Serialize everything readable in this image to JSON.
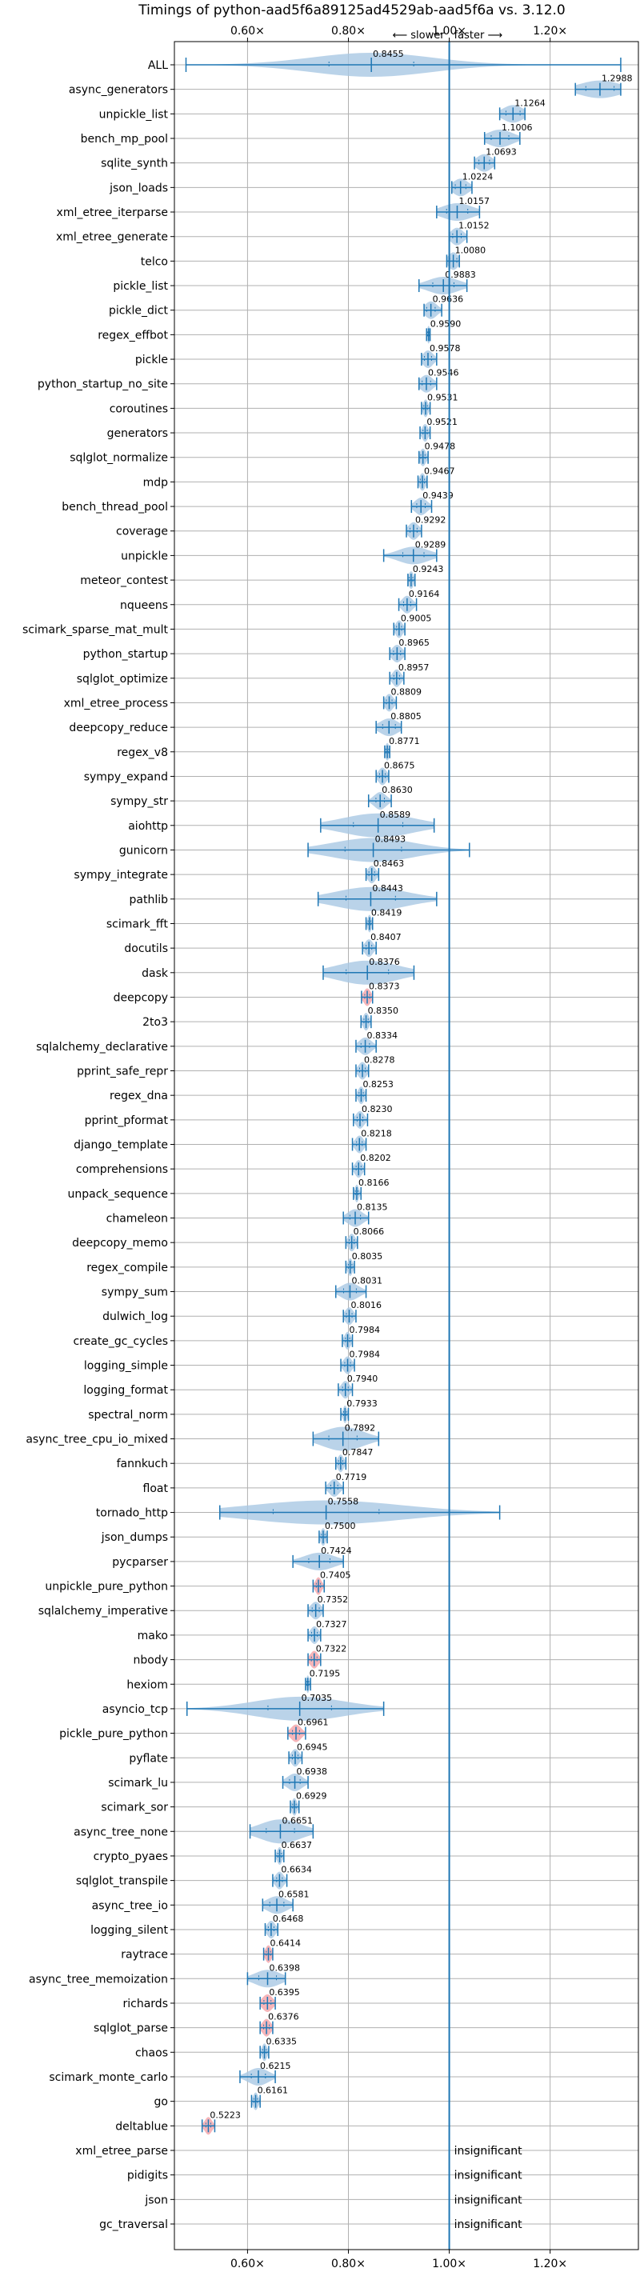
{
  "chart_data": {
    "type": "violin",
    "title": "Timings of python-aad5f6a89125ad4529ab-aad5f6a vs. 3.12.0",
    "direction_labels": {
      "slower": "⟵ slower",
      "faster": "faster ⟶"
    },
    "xlim": [
      0.455,
      1.375
    ],
    "xticks": [
      0.6,
      0.8,
      1.0,
      1.2
    ],
    "xtick_labels": [
      "0.60×",
      "0.80×",
      "1.00×",
      "1.20×"
    ],
    "reference_line": 1.0,
    "grid": true,
    "colors": {
      "violin": "#a9c8e4",
      "line": "#1f77b4",
      "regression": "#f4a3a8"
    },
    "insignificant_label": "insignificant",
    "benchmarks": [
      {
        "name": "ALL",
        "mean": 0.8455,
        "label": "0.8455",
        "min": 0.478,
        "max": 1.34,
        "spread": 0.12,
        "width": "wide"
      },
      {
        "name": "async_generators",
        "mean": 1.2988,
        "label": "1.2988",
        "min": 1.25,
        "max": 1.34,
        "spread": 0.04
      },
      {
        "name": "unpickle_list",
        "mean": 1.1264,
        "label": "1.1264",
        "min": 1.1,
        "max": 1.15,
        "spread": 0.02
      },
      {
        "name": "bench_mp_pool",
        "mean": 1.1006,
        "label": "1.1006",
        "min": 1.07,
        "max": 1.14,
        "spread": 0.025
      },
      {
        "name": "sqlite_synth",
        "mean": 1.0693,
        "label": "1.0693",
        "min": 1.05,
        "max": 1.09,
        "spread": 0.015
      },
      {
        "name": "json_loads",
        "mean": 1.0224,
        "label": "1.0224",
        "min": 1.005,
        "max": 1.045,
        "spread": 0.015
      },
      {
        "name": "xml_etree_iterparse",
        "mean": 1.0157,
        "label": "1.0157",
        "min": 0.975,
        "max": 1.06,
        "spread": 0.03
      },
      {
        "name": "xml_etree_generate",
        "mean": 1.0152,
        "label": "1.0152",
        "min": 1.0,
        "max": 1.035,
        "spread": 0.012
      },
      {
        "name": "telco",
        "mean": 1.008,
        "label": "1.0080",
        "min": 0.995,
        "max": 1.02,
        "spread": 0.01
      },
      {
        "name": "pickle_list",
        "mean": 0.9883,
        "label": "0.9883",
        "min": 0.94,
        "max": 1.035,
        "spread": 0.03
      },
      {
        "name": "pickle_dict",
        "mean": 0.9636,
        "label": "0.9636",
        "min": 0.95,
        "max": 0.985,
        "spread": 0.012
      },
      {
        "name": "regex_effbot",
        "mean": 0.959,
        "label": "0.9590",
        "min": 0.955,
        "max": 0.962,
        "spread": 0.003
      },
      {
        "name": "pickle",
        "mean": 0.9578,
        "label": "0.9578",
        "min": 0.945,
        "max": 0.975,
        "spread": 0.01
      },
      {
        "name": "python_startup_no_site",
        "mean": 0.9546,
        "label": "0.9546",
        "min": 0.94,
        "max": 0.975,
        "spread": 0.012
      },
      {
        "name": "coroutines",
        "mean": 0.9531,
        "label": "0.9531",
        "min": 0.945,
        "max": 0.962,
        "spread": 0.005
      },
      {
        "name": "generators",
        "mean": 0.9521,
        "label": "0.9521",
        "min": 0.942,
        "max": 0.962,
        "spread": 0.006
      },
      {
        "name": "sqlglot_normalize",
        "mean": 0.9478,
        "label": "0.9478",
        "min": 0.94,
        "max": 0.958,
        "spread": 0.006
      },
      {
        "name": "mdp",
        "mean": 0.9467,
        "label": "0.9467",
        "min": 0.938,
        "max": 0.956,
        "spread": 0.006
      },
      {
        "name": "bench_thread_pool",
        "mean": 0.9439,
        "label": "0.9439",
        "min": 0.925,
        "max": 0.965,
        "spread": 0.012
      },
      {
        "name": "coverage",
        "mean": 0.9292,
        "label": "0.9292",
        "min": 0.915,
        "max": 0.945,
        "spread": 0.01
      },
      {
        "name": "unpickle",
        "mean": 0.9289,
        "label": "0.9289",
        "min": 0.87,
        "max": 0.975,
        "spread": 0.03
      },
      {
        "name": "meteor_contest",
        "mean": 0.9243,
        "label": "0.9243",
        "min": 0.918,
        "max": 0.932,
        "spread": 0.005
      },
      {
        "name": "nqueens",
        "mean": 0.9164,
        "label": "0.9164",
        "min": 0.9,
        "max": 0.935,
        "spread": 0.01
      },
      {
        "name": "scimark_sparse_mat_mult",
        "mean": 0.9005,
        "label": "0.9005",
        "min": 0.89,
        "max": 0.912,
        "spread": 0.007
      },
      {
        "name": "python_startup",
        "mean": 0.8965,
        "label": "0.8965",
        "min": 0.882,
        "max": 0.912,
        "spread": 0.01
      },
      {
        "name": "sqlglot_optimize",
        "mean": 0.8957,
        "label": "0.8957",
        "min": 0.882,
        "max": 0.91,
        "spread": 0.008
      },
      {
        "name": "xml_etree_process",
        "mean": 0.8809,
        "label": "0.8809",
        "min": 0.87,
        "max": 0.895,
        "spread": 0.008
      },
      {
        "name": "deepcopy_reduce",
        "mean": 0.8805,
        "label": "0.8805",
        "min": 0.855,
        "max": 0.905,
        "spread": 0.018
      },
      {
        "name": "regex_v8",
        "mean": 0.8771,
        "label": "0.8771",
        "min": 0.872,
        "max": 0.882,
        "spread": 0.004
      },
      {
        "name": "sympy_expand",
        "mean": 0.8675,
        "label": "0.8675",
        "min": 0.855,
        "max": 0.88,
        "spread": 0.008
      },
      {
        "name": "sympy_str",
        "mean": 0.863,
        "label": "0.8630",
        "min": 0.84,
        "max": 0.885,
        "spread": 0.012
      },
      {
        "name": "aiohttp",
        "mean": 0.8589,
        "label": "0.8589",
        "min": 0.745,
        "max": 0.97,
        "spread": 0.07,
        "width": "wide"
      },
      {
        "name": "gunicorn",
        "mean": 0.8493,
        "label": "0.8493",
        "min": 0.72,
        "max": 1.04,
        "spread": 0.08,
        "width": "wide"
      },
      {
        "name": "sympy_integrate",
        "mean": 0.8463,
        "label": "0.8463",
        "min": 0.835,
        "max": 0.86,
        "spread": 0.008
      },
      {
        "name": "pathlib",
        "mean": 0.8443,
        "label": "0.8443",
        "min": 0.74,
        "max": 0.975,
        "spread": 0.07,
        "width": "wide"
      },
      {
        "name": "scimark_fft",
        "mean": 0.8419,
        "label": "0.8419",
        "min": 0.835,
        "max": 0.848,
        "spread": 0.004
      },
      {
        "name": "docutils",
        "mean": 0.8407,
        "label": "0.8407",
        "min": 0.828,
        "max": 0.855,
        "spread": 0.008
      },
      {
        "name": "dask",
        "mean": 0.8376,
        "label": "0.8376",
        "min": 0.75,
        "max": 0.93,
        "spread": 0.06,
        "width": "wide"
      },
      {
        "name": "deepcopy",
        "mean": 0.8373,
        "label": "0.8373",
        "min": 0.826,
        "max": 0.848,
        "spread": 0.007,
        "regression": true
      },
      {
        "name": "2to3",
        "mean": 0.835,
        "label": "0.8350",
        "min": 0.825,
        "max": 0.845,
        "spread": 0.006
      },
      {
        "name": "sqlalchemy_declarative",
        "mean": 0.8334,
        "label": "0.8334",
        "min": 0.815,
        "max": 0.855,
        "spread": 0.012
      },
      {
        "name": "pprint_safe_repr",
        "mean": 0.8278,
        "label": "0.8278",
        "min": 0.815,
        "max": 0.84,
        "spread": 0.008
      },
      {
        "name": "regex_dna",
        "mean": 0.8253,
        "label": "0.8253",
        "min": 0.815,
        "max": 0.835,
        "spread": 0.006
      },
      {
        "name": "pprint_pformat",
        "mean": 0.823,
        "label": "0.8230",
        "min": 0.81,
        "max": 0.838,
        "spread": 0.008
      },
      {
        "name": "django_template",
        "mean": 0.8218,
        "label": "0.8218",
        "min": 0.808,
        "max": 0.835,
        "spread": 0.008
      },
      {
        "name": "comprehensions",
        "mean": 0.8202,
        "label": "0.8202",
        "min": 0.808,
        "max": 0.832,
        "spread": 0.007
      },
      {
        "name": "unpack_sequence",
        "mean": 0.8166,
        "label": "0.8166",
        "min": 0.81,
        "max": 0.825,
        "spread": 0.004
      },
      {
        "name": "chameleon",
        "mean": 0.8135,
        "label": "0.8135",
        "min": 0.79,
        "max": 0.84,
        "spread": 0.015
      },
      {
        "name": "deepcopy_memo",
        "mean": 0.8066,
        "label": "0.8066",
        "min": 0.795,
        "max": 0.818,
        "spread": 0.007
      },
      {
        "name": "regex_compile",
        "mean": 0.8035,
        "label": "0.8035",
        "min": 0.795,
        "max": 0.812,
        "spread": 0.005
      },
      {
        "name": "sympy_sum",
        "mean": 0.8031,
        "label": "0.8031",
        "min": 0.775,
        "max": 0.835,
        "spread": 0.018
      },
      {
        "name": "dulwich_log",
        "mean": 0.8016,
        "label": "0.8016",
        "min": 0.79,
        "max": 0.815,
        "spread": 0.008
      },
      {
        "name": "create_gc_cycles",
        "mean": 0.7984,
        "label": "0.7984",
        "min": 0.788,
        "max": 0.808,
        "spread": 0.006
      },
      {
        "name": "logging_simple",
        "mean": 0.7984,
        "label": "0.7984",
        "min": 0.785,
        "max": 0.812,
        "spread": 0.008
      },
      {
        "name": "logging_format",
        "mean": 0.794,
        "label": "0.7940",
        "min": 0.78,
        "max": 0.808,
        "spread": 0.008
      },
      {
        "name": "spectral_norm",
        "mean": 0.7933,
        "label": "0.7933",
        "min": 0.785,
        "max": 0.8,
        "spread": 0.004
      },
      {
        "name": "async_tree_cpu_io_mixed",
        "mean": 0.7892,
        "label": "0.7892",
        "min": 0.73,
        "max": 0.86,
        "spread": 0.04,
        "width": "wide"
      },
      {
        "name": "fannkuch",
        "mean": 0.7847,
        "label": "0.7847",
        "min": 0.775,
        "max": 0.795,
        "spread": 0.006
      },
      {
        "name": "float",
        "mean": 0.7719,
        "label": "0.7719",
        "min": 0.755,
        "max": 0.79,
        "spread": 0.01
      },
      {
        "name": "tornado_http",
        "mean": 0.7558,
        "label": "0.7558",
        "min": 0.545,
        "max": 1.1,
        "spread": 0.15,
        "width": "wide"
      },
      {
        "name": "json_dumps",
        "mean": 0.75,
        "label": "0.7500",
        "min": 0.742,
        "max": 0.758,
        "spread": 0.005
      },
      {
        "name": "pycparser",
        "mean": 0.7424,
        "label": "0.7424",
        "min": 0.69,
        "max": 0.79,
        "spread": 0.03
      },
      {
        "name": "unpickle_pure_python",
        "mean": 0.7405,
        "label": "0.7405",
        "min": 0.73,
        "max": 0.752,
        "spread": 0.006,
        "regression": true
      },
      {
        "name": "sqlalchemy_imperative",
        "mean": 0.7352,
        "label": "0.7352",
        "min": 0.72,
        "max": 0.75,
        "spread": 0.01
      },
      {
        "name": "mako",
        "mean": 0.7327,
        "label": "0.7327",
        "min": 0.72,
        "max": 0.745,
        "spread": 0.008
      },
      {
        "name": "nbody",
        "mean": 0.7322,
        "label": "0.7322",
        "min": 0.72,
        "max": 0.745,
        "spread": 0.008,
        "regression": true
      },
      {
        "name": "hexiom",
        "mean": 0.7195,
        "label": "0.7195",
        "min": 0.715,
        "max": 0.725,
        "spread": 0.003
      },
      {
        "name": "asyncio_tcp",
        "mean": 0.7035,
        "label": "0.7035",
        "min": 0.48,
        "max": 0.87,
        "spread": 0.09,
        "width": "wide"
      },
      {
        "name": "pickle_pure_python",
        "mean": 0.6961,
        "label": "0.6961",
        "min": 0.68,
        "max": 0.715,
        "spread": 0.01,
        "regression": true
      },
      {
        "name": "pyflate",
        "mean": 0.6945,
        "label": "0.6945",
        "min": 0.682,
        "max": 0.708,
        "spread": 0.008
      },
      {
        "name": "scimark_lu",
        "mean": 0.6938,
        "label": "0.6938",
        "min": 0.67,
        "max": 0.72,
        "spread": 0.015
      },
      {
        "name": "scimark_sor",
        "mean": 0.6929,
        "label": "0.6929",
        "min": 0.685,
        "max": 0.702,
        "spread": 0.005
      },
      {
        "name": "async_tree_none",
        "mean": 0.6651,
        "label": "0.6651",
        "min": 0.605,
        "max": 0.73,
        "spread": 0.04,
        "width": "wide"
      },
      {
        "name": "crypto_pyaes",
        "mean": 0.6637,
        "label": "0.6637",
        "min": 0.655,
        "max": 0.672,
        "spread": 0.005
      },
      {
        "name": "sqlglot_transpile",
        "mean": 0.6634,
        "label": "0.6634",
        "min": 0.65,
        "max": 0.678,
        "spread": 0.008
      },
      {
        "name": "async_tree_io",
        "mean": 0.6581,
        "label": "0.6581",
        "min": 0.63,
        "max": 0.69,
        "spread": 0.02
      },
      {
        "name": "logging_silent",
        "mean": 0.6468,
        "label": "0.6468",
        "min": 0.635,
        "max": 0.66,
        "spread": 0.008
      },
      {
        "name": "raytrace",
        "mean": 0.6414,
        "label": "0.6414",
        "min": 0.632,
        "max": 0.65,
        "spread": 0.006,
        "regression": true
      },
      {
        "name": "async_tree_memoization",
        "mean": 0.6398,
        "label": "0.6398",
        "min": 0.6,
        "max": 0.675,
        "spread": 0.025
      },
      {
        "name": "richards",
        "mean": 0.6395,
        "label": "0.6395",
        "min": 0.625,
        "max": 0.655,
        "spread": 0.01,
        "regression": true
      },
      {
        "name": "sqlglot_parse",
        "mean": 0.6376,
        "label": "0.6376",
        "min": 0.625,
        "max": 0.65,
        "spread": 0.008,
        "regression": true
      },
      {
        "name": "chaos",
        "mean": 0.6335,
        "label": "0.6335",
        "min": 0.625,
        "max": 0.642,
        "spread": 0.005
      },
      {
        "name": "scimark_monte_carlo",
        "mean": 0.6215,
        "label": "0.6215",
        "min": 0.585,
        "max": 0.655,
        "spread": 0.02
      },
      {
        "name": "go",
        "mean": 0.6161,
        "label": "0.6161",
        "min": 0.608,
        "max": 0.625,
        "spread": 0.005
      },
      {
        "name": "deltablue",
        "mean": 0.5223,
        "label": "0.5223",
        "min": 0.51,
        "max": 0.535,
        "spread": 0.007,
        "regression": true
      },
      {
        "name": "xml_etree_parse",
        "insignificant": true
      },
      {
        "name": "pidigits",
        "insignificant": true
      },
      {
        "name": "json",
        "insignificant": true
      },
      {
        "name": "gc_traversal",
        "insignificant": true
      }
    ]
  }
}
